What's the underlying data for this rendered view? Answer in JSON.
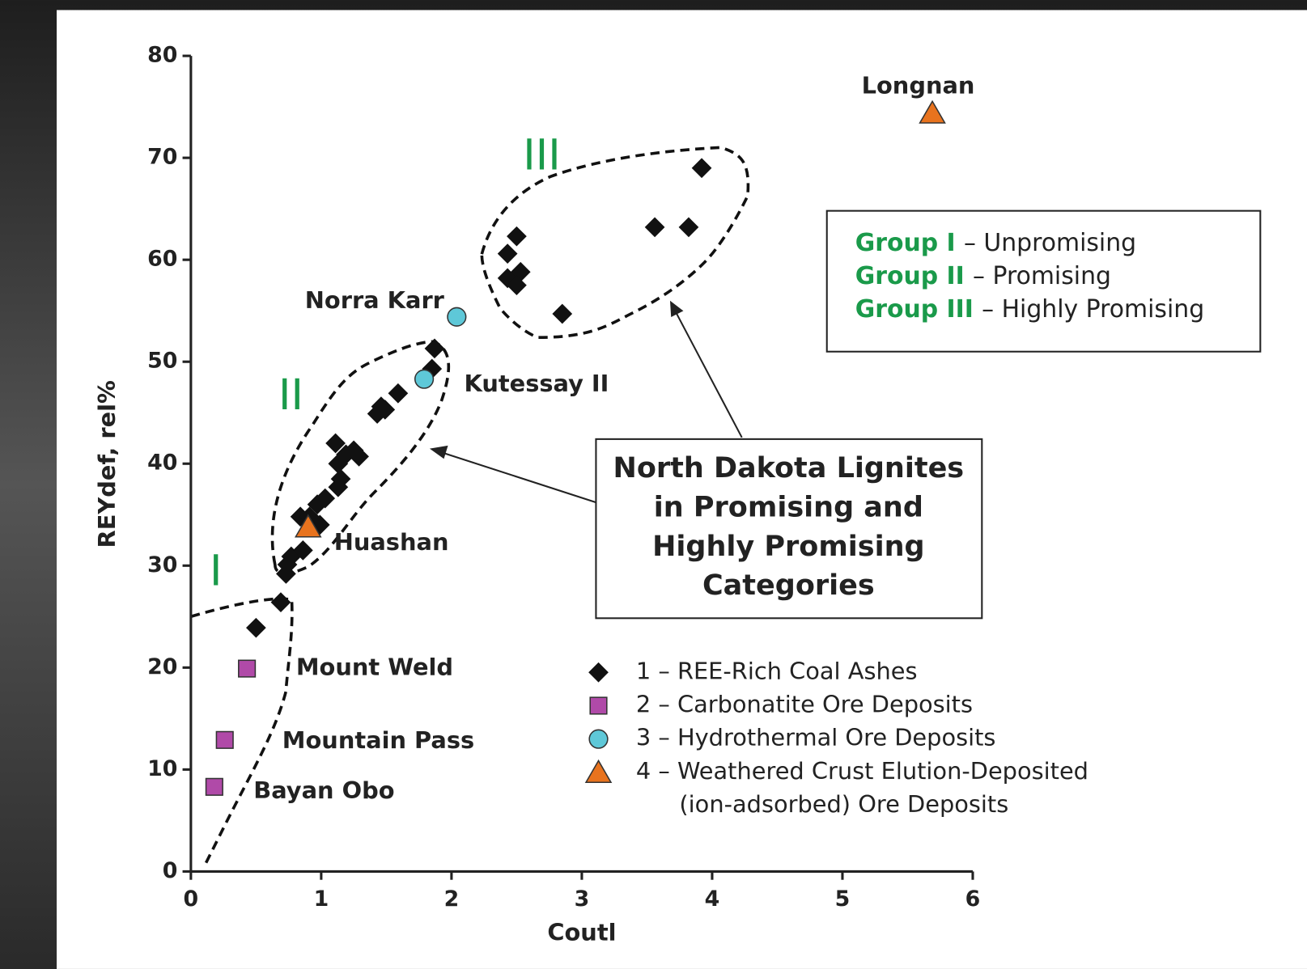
{
  "chart_data": {
    "type": "scatter",
    "xlabel": "Coutl",
    "ylabel": "REYdef, rel%",
    "xlim": [
      0,
      6
    ],
    "xticks": [
      0,
      1,
      2,
      3,
      4,
      5,
      6
    ],
    "ylim": [
      0,
      80
    ],
    "yticks": [
      0,
      10,
      20,
      30,
      40,
      50,
      60,
      70,
      80
    ],
    "series": [
      {
        "name": "1 – REE-Rich Coal Ashes",
        "marker": "diamond",
        "color": "#111111",
        "x": [
          0.5,
          0.69,
          0.73,
          0.74,
          0.77,
          0.86,
          0.84,
          0.91,
          0.99,
          0.97,
          1.03,
          1.13,
          1.15,
          1.13,
          1.11,
          1.19,
          1.25,
          1.29,
          1.43,
          1.49,
          1.46,
          1.59,
          1.85,
          1.87,
          2.43,
          2.5,
          2.43,
          2.53,
          2.5,
          2.85,
          3.56,
          3.82,
          3.92
        ],
        "values": [
          23.9,
          26.4,
          29.2,
          30.1,
          30.9,
          31.5,
          34.8,
          34.8,
          34.0,
          36.0,
          36.6,
          37.7,
          38.5,
          40.0,
          42.0,
          40.9,
          41.3,
          40.7,
          44.9,
          45.3,
          45.6,
          46.9,
          49.3,
          51.3,
          60.6,
          62.3,
          58.2,
          58.8,
          57.5,
          54.7,
          63.2,
          63.2,
          69.0
        ]
      },
      {
        "name": "2 – Carbonatite Ore Deposits",
        "marker": "square",
        "color": "#b04aa8",
        "x": [
          0.43,
          0.26,
          0.18
        ],
        "values": [
          19.9,
          12.9,
          8.3
        ],
        "labels": [
          "Mount Weld",
          "Mountain Pass",
          "Bayan Obo"
        ]
      },
      {
        "name": "3 – Hydrothermal Ore Deposits",
        "marker": "circle",
        "color": "#5ec8d8",
        "x": [
          2.04,
          1.79
        ],
        "values": [
          54.4,
          48.3
        ],
        "labels": [
          "Norra Karr",
          "Kutessay II"
        ]
      },
      {
        "name": "4 – Weathered Crust Elution-Deposited (ion-adsorbed) Ore Deposits",
        "marker": "triangle",
        "color": "#e8731e",
        "x": [
          5.69,
          0.9
        ],
        "values": [
          74.4,
          33.8
        ],
        "labels": [
          "Longnan",
          "Huashan"
        ]
      }
    ],
    "group_labels": [
      "I",
      "II",
      "III"
    ],
    "groups": [
      {
        "name": "Group I",
        "description": "– Unpromising"
      },
      {
        "name": "Group II",
        "description": "– Promising"
      },
      {
        "name": "Group III",
        "description": "– Highly Promising"
      }
    ],
    "callout": [
      "North Dakota Lignites",
      "in Promising and",
      "Highly Promising",
      "Categories"
    ]
  }
}
